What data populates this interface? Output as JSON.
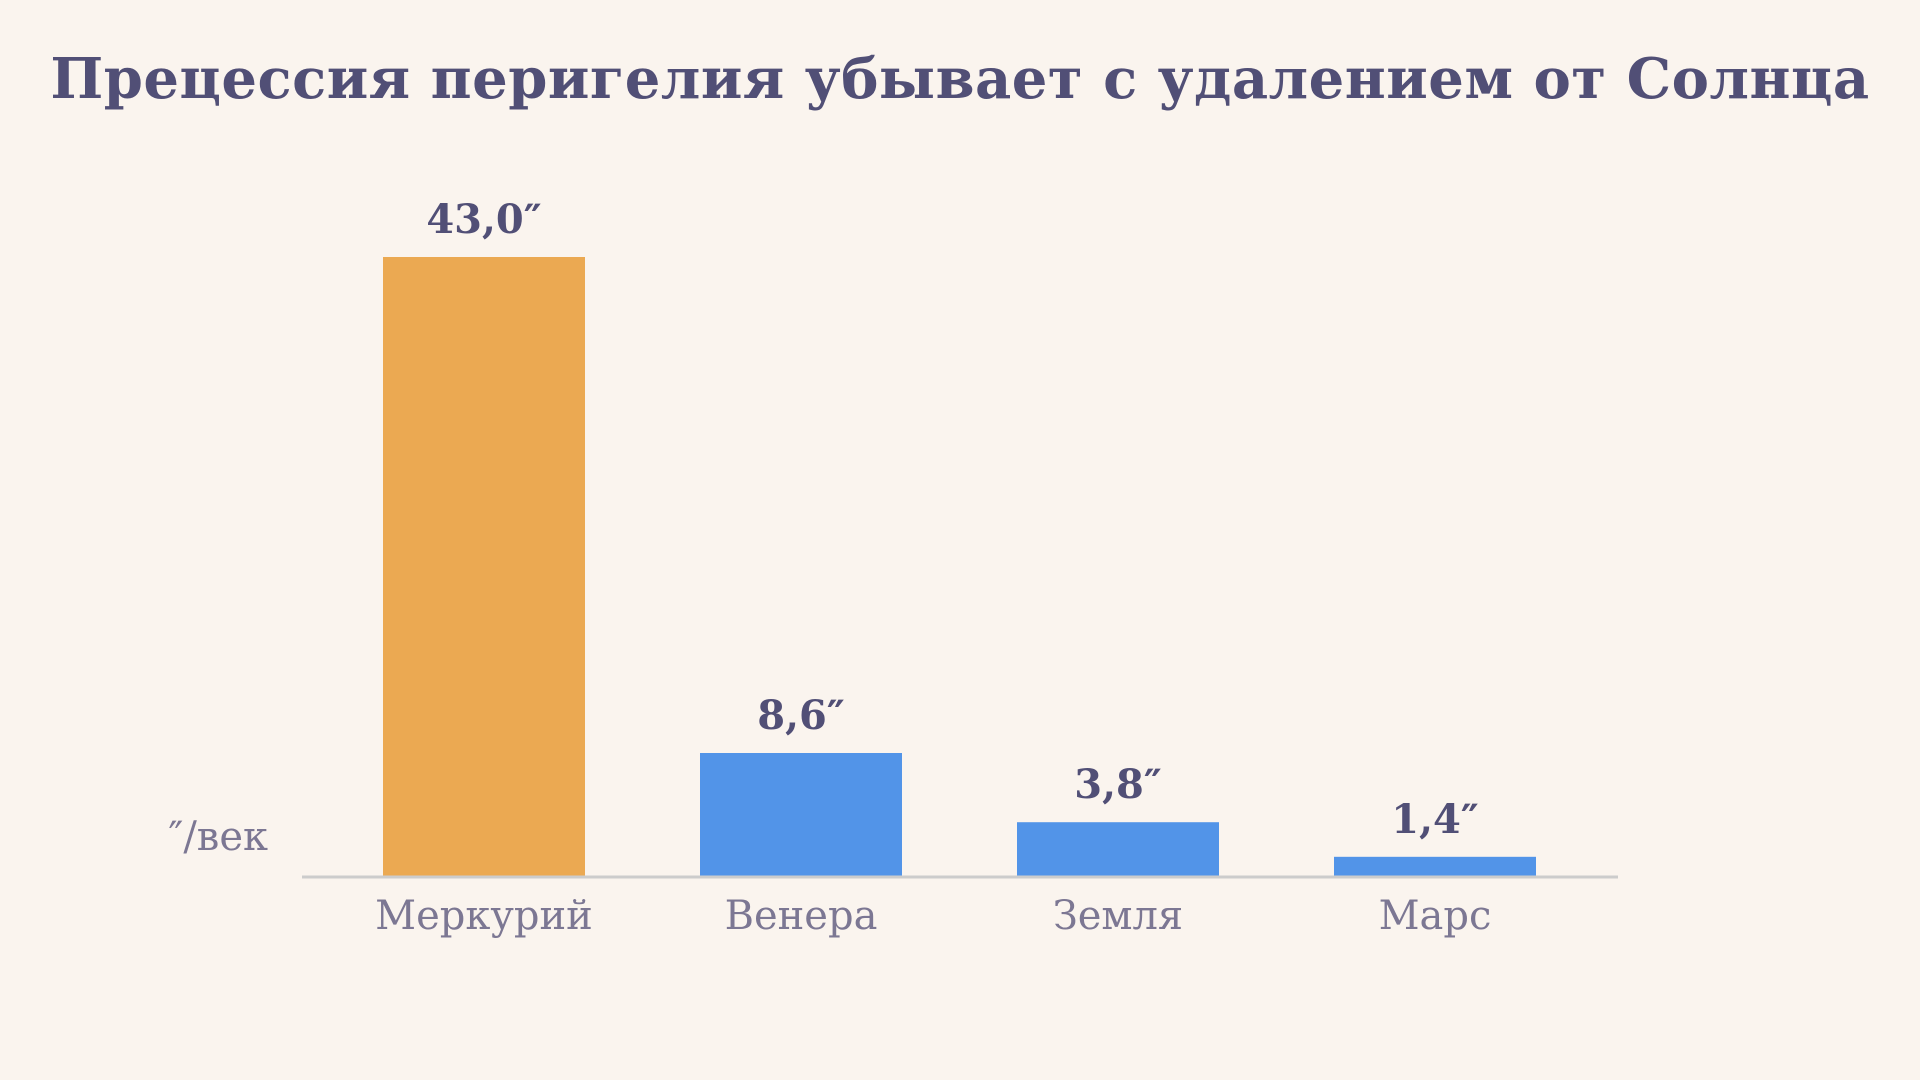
{
  "chart_data": {
    "type": "bar",
    "title": "Прецессия перигелия убывает с удалением от Солнца",
    "ylabel": "″/век",
    "xlabel": "",
    "categories": [
      "Меркурий",
      "Венера",
      "Земля",
      "Марс"
    ],
    "values": [
      43.0,
      8.6,
      3.8,
      1.4
    ],
    "value_labels": [
      "43,0″",
      "8,6″",
      "3,8″",
      "1,4″"
    ],
    "ylim": [
      0,
      43.0
    ],
    "grid": false,
    "legend": "none",
    "colors": {
      "highlight": "#eba952",
      "default": "#5294e8",
      "baseline": "#cccccc"
    },
    "highlight_index": 0
  }
}
